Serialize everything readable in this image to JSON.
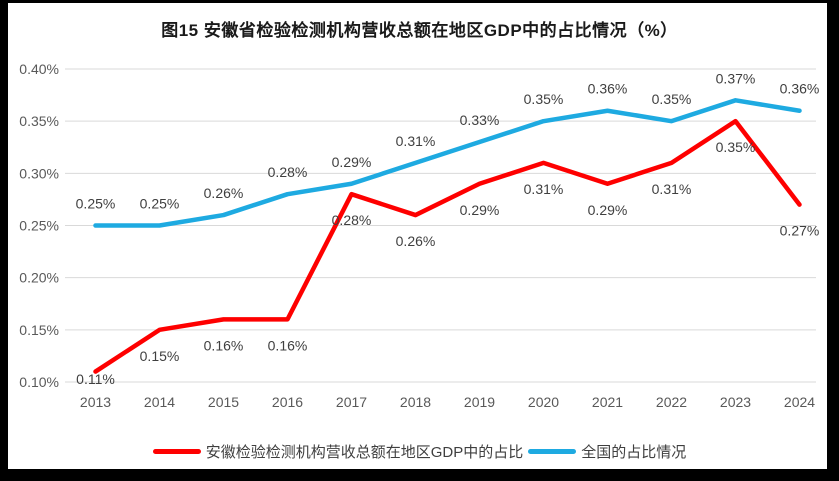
{
  "title": "图15 安徽省检验检测机构营收总额在地区GDP中的占比情况（%）",
  "chart_data": {
    "type": "line",
    "categories": [
      "2013",
      "2014",
      "2015",
      "2016",
      "2017",
      "2018",
      "2019",
      "2020",
      "2021",
      "2022",
      "2023",
      "2024"
    ],
    "series": [
      {
        "id": "anhui",
        "name": "安徽检验检测机构营收总额在地区GDP中的占比",
        "color": "#fe0000",
        "values": [
          0.11,
          0.15,
          0.16,
          0.16,
          0.28,
          0.26,
          0.29,
          0.31,
          0.29,
          0.31,
          0.35,
          0.27
        ],
        "point_labels": [
          "0.11%",
          "0.15%",
          "0.16%",
          "0.16%",
          "0.28%",
          "0.26%",
          "0.29%",
          "0.31%",
          "0.29%",
          "0.31%",
          "0.35%",
          "0.27%"
        ],
        "label_position": "below"
      },
      {
        "id": "national",
        "name": "全国的占比情况",
        "color": "#1eaae1",
        "values": [
          0.25,
          0.25,
          0.26,
          0.28,
          0.29,
          0.31,
          0.33,
          0.35,
          0.36,
          0.35,
          0.37,
          0.36
        ],
        "point_labels": [
          "0.25%",
          "0.25%",
          "0.26%",
          "0.28%",
          "0.29%",
          "0.31%",
          "0.33%",
          "0.35%",
          "0.36%",
          "0.35%",
          "0.37%",
          "0.36%"
        ],
        "label_position": "above"
      }
    ],
    "ylim": [
      0.1,
      0.4
    ],
    "y_ticks": [
      "0.10%",
      "0.15%",
      "0.20%",
      "0.25%",
      "0.30%",
      "0.35%",
      "0.40%"
    ],
    "grid": true,
    "legend_position": "bottom",
    "grid_color": "#d9d9d9",
    "axis_text_color": "#595959"
  }
}
